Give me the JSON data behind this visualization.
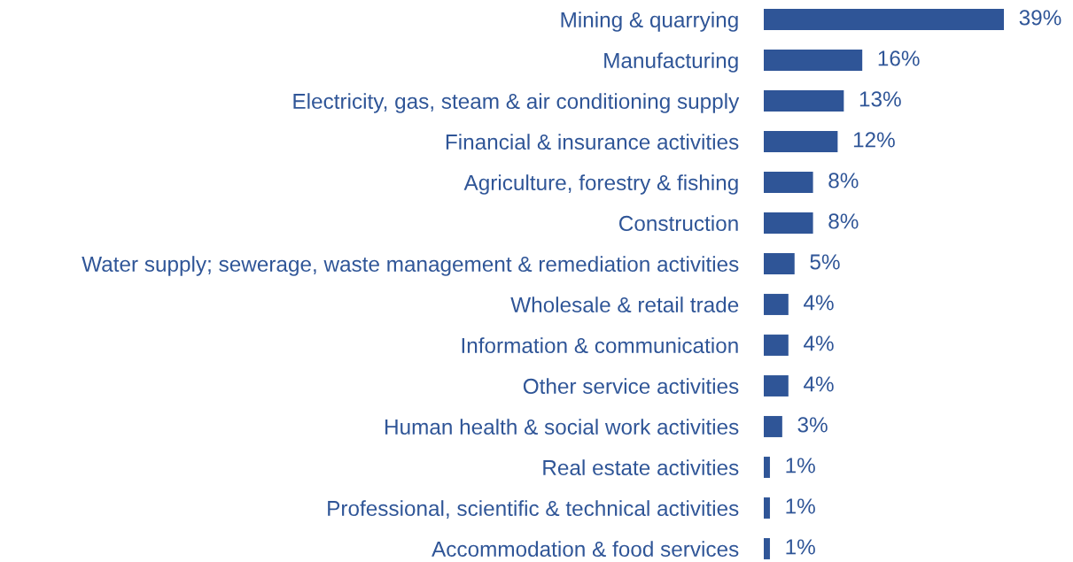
{
  "chart_data": {
    "type": "bar",
    "orientation": "horizontal",
    "color": "#2f5597",
    "categories": [
      "Mining & quarrying",
      "Manufacturing",
      "Electricity, gas, steam & air conditioning supply",
      "Financial & insurance activities",
      "Agriculture, forestry & fishing",
      "Construction",
      "Water supply; sewerage, waste management & remediation activities",
      "Wholesale & retail trade",
      "Information & communication",
      "Other service activities",
      "Human health & social work activities",
      "Real estate activities",
      "Professional, scientific & technical activities",
      "Accommodation & food services"
    ],
    "values": [
      39,
      16,
      13,
      12,
      8,
      8,
      5,
      4,
      4,
      4,
      3,
      1,
      1,
      1
    ],
    "value_labels": [
      "39%",
      "16%",
      "13%",
      "12%",
      "8%",
      "8%",
      "5%",
      "4%",
      "4%",
      "4%",
      "3%",
      "1%",
      "1%",
      "1%"
    ],
    "tick_labels": "y",
    "grid": false,
    "legend": false
  }
}
